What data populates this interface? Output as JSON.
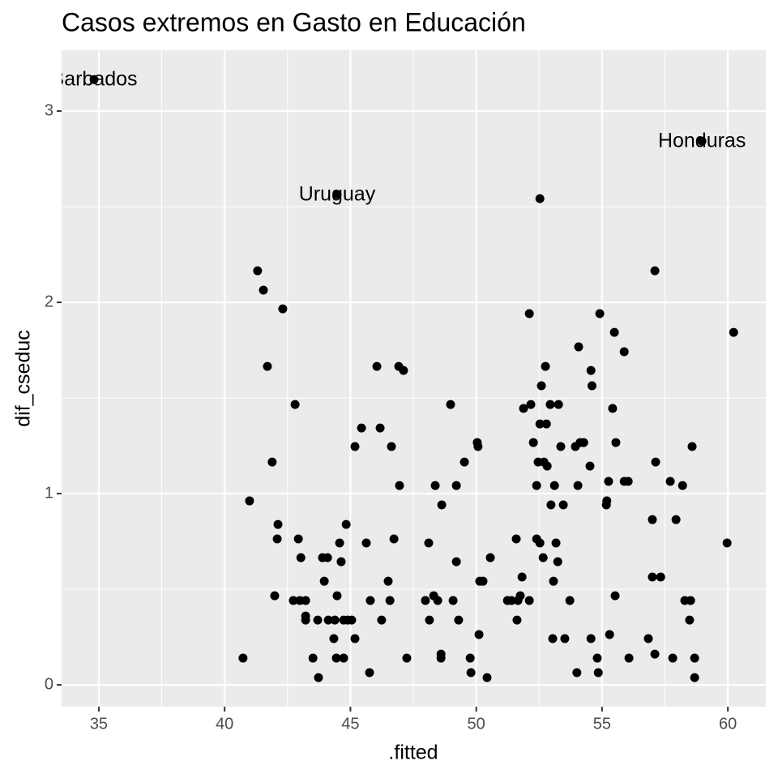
{
  "chart_data": {
    "type": "scatter",
    "title": "Casos extremos en Gasto en Educación",
    "x_label": ".fitted",
    "y_label": "dif_cseduc",
    "color": "#000000",
    "grid": true,
    "xlim": [
      33.52,
      61.51
    ],
    "ylim": [
      -0.114,
      3.318
    ],
    "xticks": [
      35,
      40,
      45,
      50,
      55,
      60
    ],
    "yticks": [
      0,
      1,
      2,
      3
    ],
    "annotations": [
      {
        "text": "Barbados",
        "x": 34.81,
        "y": 3.165
      },
      {
        "text": "Honduras",
        "x": 58.97,
        "y": 2.843
      },
      {
        "text": "Uruguay",
        "x": 44.47,
        "y": 2.564
      }
    ],
    "x": [
      34.81,
      58.97,
      44.47,
      52.53,
      41.31,
      41.54,
      42.31,
      57.1,
      52.11,
      54.91,
      60.23,
      55.49,
      55.88,
      54.07,
      41.7,
      46.05,
      46.92,
      47.11,
      52.75,
      54.56,
      52.59,
      54.6,
      42.8,
      48.98,
      51.88,
      52.17,
      52.94,
      53.27,
      55.42,
      45.44,
      46.18,
      52.53,
      52.79,
      50.04,
      50.07,
      52.27,
      45.18,
      46.63,
      53.36,
      53.94,
      54.13,
      54.27,
      55.55,
      58.58,
      41.89,
      49.53,
      52.46,
      52.69,
      52.82,
      54.52,
      57.13,
      46.95,
      48.37,
      49.21,
      52.4,
      53.11,
      54.04,
      55.26,
      55.88,
      56.04,
      57.71,
      58.2,
      40.99,
      48.63,
      52.97,
      53.46,
      55.19,
      55.17,
      42.12,
      44.83,
      42.09,
      42.93,
      46.73,
      51.59,
      52.4,
      52.53,
      53.17,
      57.0,
      57.94,
      59.97,
      44.57,
      45.63,
      48.11,
      43.03,
      43.89,
      44.09,
      44.63,
      49.21,
      50.56,
      52.66,
      53.24,
      43.96,
      46.5,
      50.14,
      50.27,
      51.82,
      53.07,
      57.0,
      57.33,
      41.99,
      42.73,
      42.99,
      43.22,
      44.47,
      45.79,
      46.57,
      47.98,
      48.31,
      48.47,
      49.08,
      51.24,
      51.4,
      51.66,
      51.75,
      52.11,
      53.72,
      55.52,
      58.29,
      58.52,
      43.22,
      43.22,
      43.7,
      44.12,
      44.38,
      44.73,
      44.89,
      45.05,
      46.24,
      48.14,
      49.3,
      51.62,
      58.48,
      44.34,
      45.18,
      50.11,
      53.04,
      53.52,
      54.56,
      55.3,
      56.84,
      40.73,
      43.51,
      44.44,
      44.73,
      47.24,
      48.6,
      48.6,
      49.76,
      54.81,
      56.07,
      57.1,
      57.81,
      58.68,
      43.73,
      45.76,
      49.79,
      50.43,
      54.0,
      54.85,
      58.68
    ],
    "values": [
      3.165,
      2.843,
      2.564,
      2.542,
      2.165,
      2.064,
      1.966,
      2.165,
      1.941,
      1.941,
      1.843,
      1.843,
      1.742,
      1.767,
      1.665,
      1.665,
      1.665,
      1.644,
      1.665,
      1.644,
      1.564,
      1.564,
      1.466,
      1.466,
      1.445,
      1.466,
      1.466,
      1.466,
      1.445,
      1.343,
      1.343,
      1.364,
      1.364,
      1.267,
      1.246,
      1.267,
      1.246,
      1.246,
      1.246,
      1.246,
      1.267,
      1.267,
      1.267,
      1.246,
      1.165,
      1.165,
      1.165,
      1.165,
      1.144,
      1.144,
      1.165,
      1.042,
      1.042,
      1.042,
      1.042,
      1.042,
      1.042,
      1.064,
      1.064,
      1.064,
      1.064,
      1.042,
      0.962,
      0.941,
      0.941,
      0.941,
      0.962,
      0.941,
      0.839,
      0.839,
      0.763,
      0.763,
      0.763,
      0.763,
      0.763,
      0.742,
      0.742,
      0.864,
      0.864,
      0.742,
      0.742,
      0.742,
      0.742,
      0.665,
      0.665,
      0.665,
      0.644,
      0.644,
      0.665,
      0.665,
      0.644,
      0.542,
      0.542,
      0.542,
      0.542,
      0.564,
      0.542,
      0.564,
      0.564,
      0.466,
      0.441,
      0.441,
      0.441,
      0.466,
      0.441,
      0.441,
      0.441,
      0.466,
      0.441,
      0.441,
      0.441,
      0.441,
      0.441,
      0.466,
      0.441,
      0.441,
      0.466,
      0.441,
      0.441,
      0.36,
      0.339,
      0.339,
      0.339,
      0.339,
      0.339,
      0.339,
      0.339,
      0.339,
      0.339,
      0.339,
      0.339,
      0.339,
      0.242,
      0.242,
      0.263,
      0.242,
      0.242,
      0.242,
      0.263,
      0.242,
      0.14,
      0.14,
      0.14,
      0.14,
      0.14,
      0.161,
      0.14,
      0.14,
      0.14,
      0.14,
      0.161,
      0.14,
      0.14,
      0.038,
      0.064,
      0.064,
      0.038,
      0.064,
      0.064,
      0.038
    ]
  }
}
